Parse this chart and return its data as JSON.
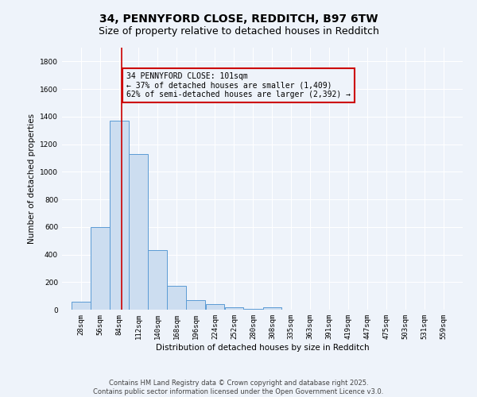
{
  "title": "34, PENNYFORD CLOSE, REDDITCH, B97 6TW",
  "subtitle": "Size of property relative to detached houses in Redditch",
  "xlabel": "Distribution of detached houses by size in Redditch",
  "ylabel": "Number of detached properties",
  "bar_values": [
    60,
    600,
    1370,
    1130,
    430,
    175,
    70,
    40,
    15,
    5,
    15,
    0,
    0,
    0,
    0,
    0,
    0,
    0,
    0,
    0
  ],
  "bin_edges": [
    28,
    56,
    84,
    112,
    140,
    168,
    196,
    224,
    252,
    280,
    308,
    335,
    363,
    391,
    419,
    447,
    475,
    503,
    531,
    559,
    587
  ],
  "bar_color": "#ccddf0",
  "bar_edge_color": "#5b9bd5",
  "background_color": "#eef3fa",
  "grid_color": "#ffffff",
  "vline_x": 101,
  "vline_color": "#cc0000",
  "annotation_line1": "34 PENNYFORD CLOSE: 101sqm",
  "annotation_line2": "← 37% of detached houses are smaller (1,409)",
  "annotation_line3": "62% of semi-detached houses are larger (2,392) →",
  "annotation_box_color": "#cc0000",
  "ylim": [
    0,
    1900
  ],
  "yticks": [
    0,
    200,
    400,
    600,
    800,
    1000,
    1200,
    1400,
    1600,
    1800
  ],
  "footnote": "Contains HM Land Registry data © Crown copyright and database right 2025.\nContains public sector information licensed under the Open Government Licence v3.0.",
  "title_fontsize": 10,
  "subtitle_fontsize": 9,
  "axis_label_fontsize": 7.5,
  "tick_fontsize": 6.5,
  "annotation_fontsize": 7,
  "footnote_fontsize": 6
}
